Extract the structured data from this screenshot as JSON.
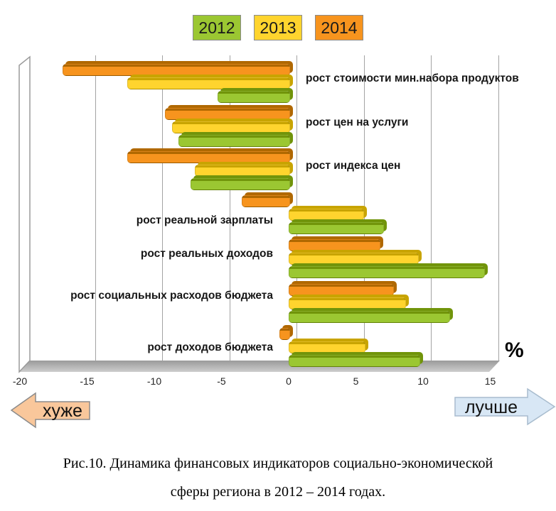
{
  "legend": [
    {
      "label": "2012",
      "color": "#9BC732"
    },
    {
      "label": "2013",
      "color": "#FFD42E"
    },
    {
      "label": "2014",
      "color": "#F7941E"
    }
  ],
  "chart_data": {
    "type": "bar",
    "orientation": "horizontal",
    "title": "",
    "xlabel": "%",
    "xlim": [
      -20,
      15
    ],
    "x_ticks": [
      -20,
      -15,
      -10,
      -5,
      0,
      5,
      10,
      15
    ],
    "grid": true,
    "legend_position": "top",
    "row_order_top_to_bottom": [
      "2014",
      "2013",
      "2012"
    ],
    "categories": [
      "рост стоимости мин.набора продуктов",
      "рост цен на услуги",
      "рост индекса цен",
      "рост реальной зарплаты",
      "рост реальных доходов",
      "рост социальных расходов бюджета",
      "рост доходов бюджета"
    ],
    "series": [
      {
        "name": "2012",
        "color": "#9BC732",
        "dark": "#71940A",
        "values": [
          -5.3,
          -8.2,
          -7.3,
          7.0,
          14.5,
          11.9,
          9.7
        ]
      },
      {
        "name": "2013",
        "color": "#FFD42E",
        "dark": "#C8A400",
        "values": [
          -12.0,
          -8.7,
          -7.0,
          5.5,
          9.6,
          8.6,
          5.6
        ]
      },
      {
        "name": "2014",
        "color": "#F7941E",
        "dark": "#B06800",
        "values": [
          -16.8,
          -9.2,
          -12.0,
          -3.5,
          6.7,
          7.7,
          -0.7
        ]
      }
    ]
  },
  "annotations": {
    "worse": "хуже",
    "better": "лучше",
    "unit": "%"
  },
  "caption": {
    "line1": "Рис.10. Динамика финансовых индикаторов социально-экономической",
    "line2": "сферы региона в 2012 – 2014 годах."
  }
}
